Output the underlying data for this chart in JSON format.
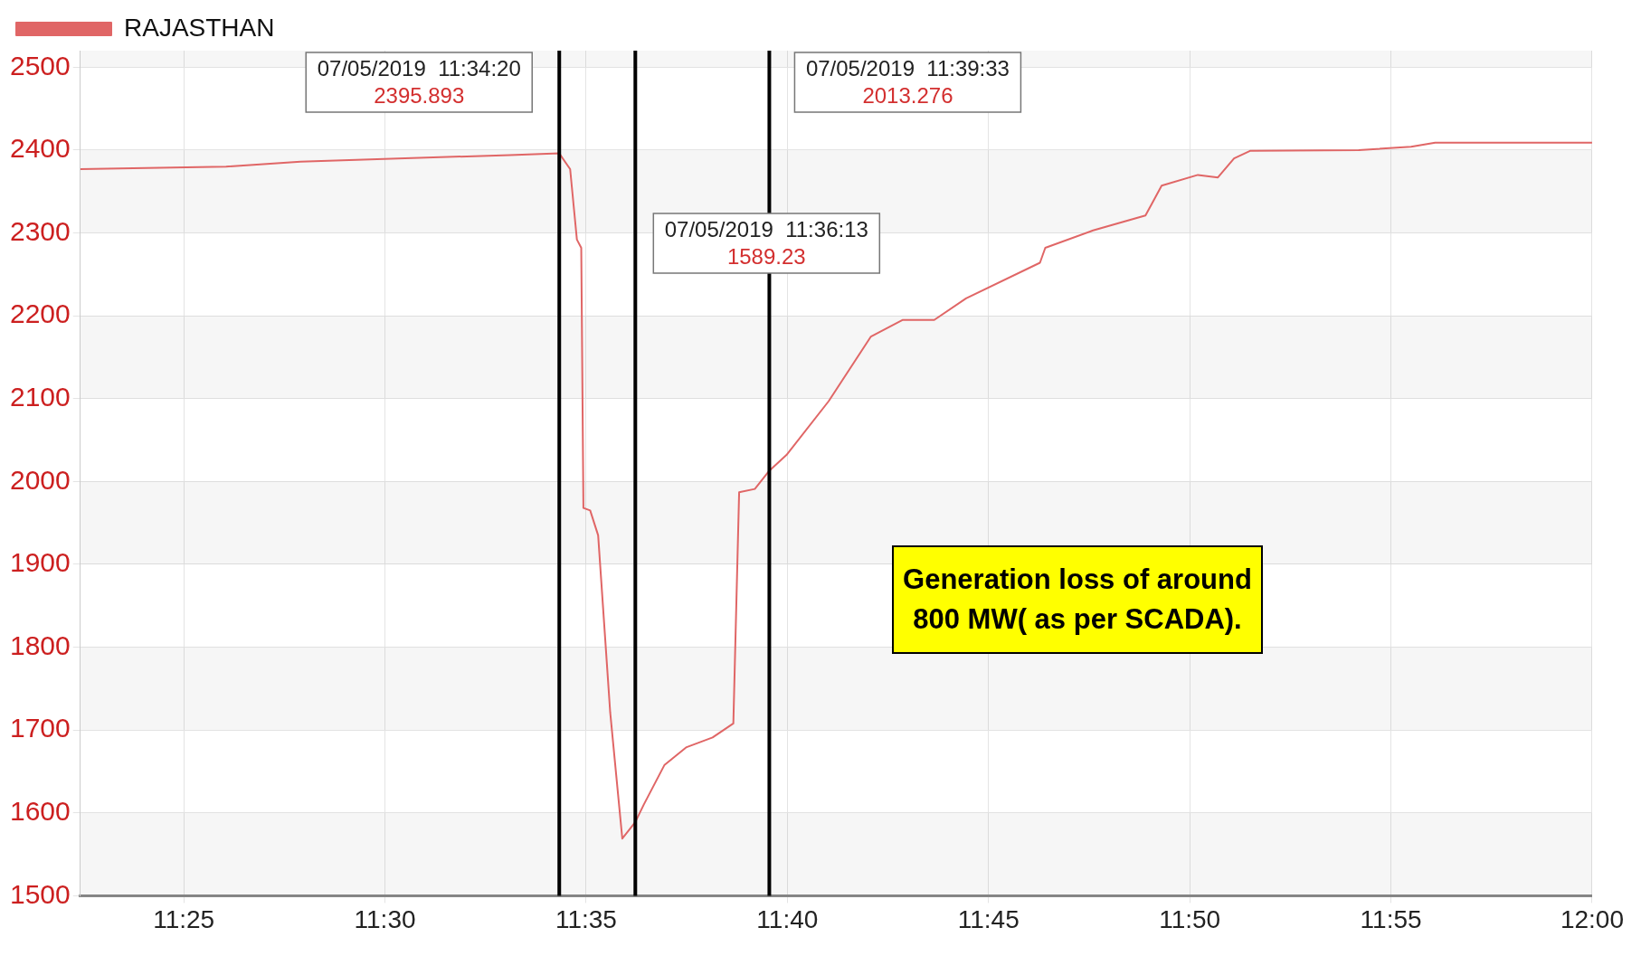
{
  "chart_data": {
    "type": "line",
    "x": [
      11.3738,
      11.4342,
      11.465,
      11.5083,
      11.5517,
      11.5722,
      11.5767,
      11.5795,
      11.5813,
      11.5822,
      11.585,
      11.5883,
      11.5933,
      11.5983,
      11.6037,
      11.6072,
      11.6158,
      11.6247,
      11.6357,
      11.6443,
      11.6467,
      11.6532,
      11.6592,
      11.6663,
      11.6838,
      11.7013,
      11.7145,
      11.7275,
      11.7407,
      11.7713,
      11.7735,
      11.7933,
      11.815,
      11.8217,
      11.8367,
      11.845,
      11.8517,
      11.8583,
      11.9033,
      11.925,
      11.935,
      12.0
    ],
    "series": [
      {
        "name": "RAJASTHAN",
        "color": "#e06666",
        "values": [
          2377,
          2380,
          2386,
          2390,
          2394,
          2396,
          2377,
          2292,
          2282,
          1968,
          1965,
          1935,
          1721,
          1569,
          1589,
          1610,
          1658,
          1679,
          1691,
          1708,
          1987,
          1991,
          2013,
          2032,
          2097,
          2175,
          2195,
          2195,
          2221,
          2264,
          2282,
          2303,
          2321,
          2357,
          2370,
          2367,
          2390,
          2399,
          2400,
          2404,
          2409,
          2409
        ]
      }
    ],
    "xlim": [
      11.3738,
      12.0
    ],
    "xticks": [
      {
        "value": 11.41667,
        "label": "11:25"
      },
      {
        "value": 11.5,
        "label": "11:30"
      },
      {
        "value": 11.58333,
        "label": "11:35"
      },
      {
        "value": 11.66667,
        "label": "11:40"
      },
      {
        "value": 11.75,
        "label": "11:45"
      },
      {
        "value": 11.83333,
        "label": "11:50"
      },
      {
        "value": 11.91667,
        "label": "11:55"
      },
      {
        "value": 12.0,
        "label": "12:00"
      }
    ],
    "ylim": [
      1500,
      2520
    ],
    "yticks": [
      1500,
      1600,
      1700,
      1800,
      1900,
      2000,
      2100,
      2200,
      2300,
      2400,
      2500
    ],
    "grid": true,
    "legend": "top left",
    "ref_lines": [
      {
        "axis": "x",
        "value": 11.5722,
        "color": "#000000"
      },
      {
        "axis": "x",
        "value": 11.6037,
        "color": "#000000"
      },
      {
        "axis": "x",
        "value": 11.6592,
        "color": "#000000"
      }
    ],
    "annotations": [
      "07/05/2019  11:34:20",
      "2395.893",
      "07/05/2019  11:36:13",
      "1589.23",
      "07/05/2019  11:39:33",
      "2013.276",
      "Generation loss of around 800 MW( as per SCADA)."
    ]
  }
}
